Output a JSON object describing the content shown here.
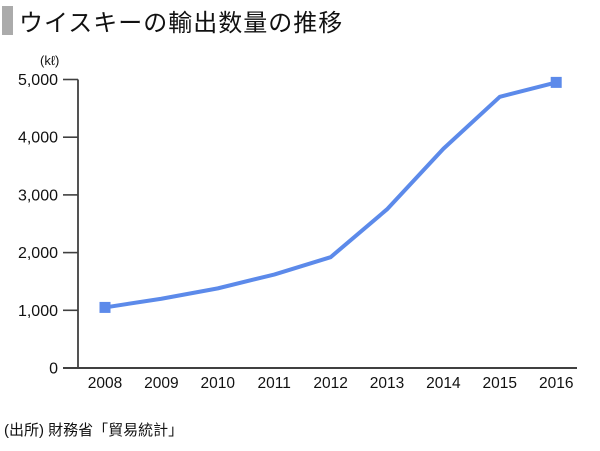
{
  "header": {
    "title": "ウイスキーの輸出数量の推移"
  },
  "unit_label": "(kℓ)",
  "source_note": "(出所) 財務省「貿易統計」",
  "colors": {
    "line": "#5C8AEA",
    "marker": "#5C8AEA",
    "axis": "#404040",
    "title_bar": "#ABABAB",
    "text": "#111111"
  },
  "chart_data": {
    "type": "line",
    "title": "ウイスキーの輸出数量の推移",
    "unit": "kℓ",
    "categories": [
      "2008",
      "2009",
      "2010",
      "2011",
      "2012",
      "2013",
      "2014",
      "2015",
      "2016"
    ],
    "values": [
      1050,
      1200,
      1380,
      1620,
      1920,
      2750,
      3800,
      4700,
      4950
    ],
    "ylim": [
      0,
      5000
    ],
    "y_tick_step": 1000,
    "y_tick_labels": [
      "0",
      "1,000",
      "2,000",
      "3,000",
      "4,000",
      "5,000"
    ],
    "xlabel": "",
    "ylabel": "(kℓ)",
    "grid": false,
    "legend": false,
    "markers": "first-and-last"
  }
}
